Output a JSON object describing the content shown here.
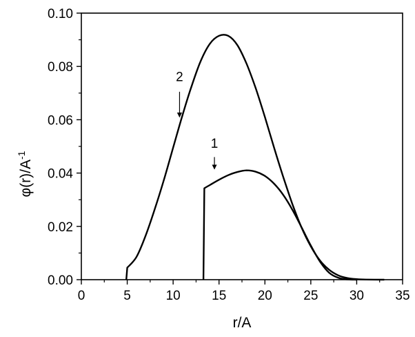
{
  "chart_data": {
    "type": "line",
    "title": "",
    "xlabel": "r/A",
    "ylabel_main": "φ(r)/A",
    "ylabel_sup": "-1",
    "xlim": [
      0,
      35
    ],
    "ylim": [
      0,
      0.1
    ],
    "grid": false,
    "legend": "none",
    "x_ticks": [
      {
        "value": 0,
        "label": "0"
      },
      {
        "value": 5,
        "label": "5"
      },
      {
        "value": 10,
        "label": "10"
      },
      {
        "value": 15,
        "label": "15"
      },
      {
        "value": 20,
        "label": "20"
      },
      {
        "value": 25,
        "label": "25"
      },
      {
        "value": 30,
        "label": "30"
      },
      {
        "value": 35,
        "label": "35"
      }
    ],
    "y_ticks": [
      {
        "value": 0.0,
        "label": "0.00"
      },
      {
        "value": 0.02,
        "label": "0.02"
      },
      {
        "value": 0.04,
        "label": "0.04"
      },
      {
        "value": 0.06,
        "label": "0.06"
      },
      {
        "value": 0.08,
        "label": "0.08"
      },
      {
        "value": 0.1,
        "label": "0.10"
      }
    ],
    "series": [
      {
        "label": "1",
        "points": [
          [
            13.3,
            0.0
          ],
          [
            13.4,
            0.0343
          ],
          [
            14,
            0.0355
          ],
          [
            15,
            0.0375
          ],
          [
            16,
            0.0392
          ],
          [
            17,
            0.0404
          ],
          [
            18,
            0.041
          ],
          [
            19,
            0.0405
          ],
          [
            20,
            0.0389
          ],
          [
            21,
            0.036
          ],
          [
            22,
            0.0318
          ],
          [
            23,
            0.0262
          ],
          [
            24,
            0.0196
          ],
          [
            25,
            0.0128
          ],
          [
            26,
            0.0068
          ],
          [
            27,
            0.0026
          ],
          [
            28,
            0.0007
          ],
          [
            29,
            0.0001
          ],
          [
            30,
            0.0
          ]
        ],
        "arrow_x": 14.5,
        "arrow_y_start": 0.046,
        "arrow_y_end": 0.0415,
        "label_x": 14.5,
        "label_y": 0.0495
      },
      {
        "label": "2",
        "points": [
          [
            4.9,
            0.0
          ],
          [
            5.0,
            0.0045
          ],
          [
            6,
            0.0085
          ],
          [
            7,
            0.0165
          ],
          [
            8,
            0.0265
          ],
          [
            9,
            0.0375
          ],
          [
            10,
            0.0495
          ],
          [
            11,
            0.0615
          ],
          [
            12,
            0.0725
          ],
          [
            13,
            0.082
          ],
          [
            14,
            0.0885
          ],
          [
            15,
            0.0915
          ],
          [
            16,
            0.0915
          ],
          [
            17,
            0.088
          ],
          [
            18,
            0.081
          ],
          [
            19,
            0.0718
          ],
          [
            20,
            0.061
          ],
          [
            21,
            0.0495
          ],
          [
            22,
            0.0385
          ],
          [
            23,
            0.0283
          ],
          [
            24,
            0.0195
          ],
          [
            25,
            0.0125
          ],
          [
            26,
            0.0072
          ],
          [
            27,
            0.0037
          ],
          [
            28,
            0.0016
          ],
          [
            29,
            0.0006
          ],
          [
            30,
            0.0002
          ],
          [
            31,
            5e-05
          ],
          [
            33,
            0.0
          ]
        ],
        "arrow_x": 10.7,
        "arrow_y_start": 0.0705,
        "arrow_y_end": 0.061,
        "label_x": 10.7,
        "label_y": 0.0745
      }
    ]
  }
}
